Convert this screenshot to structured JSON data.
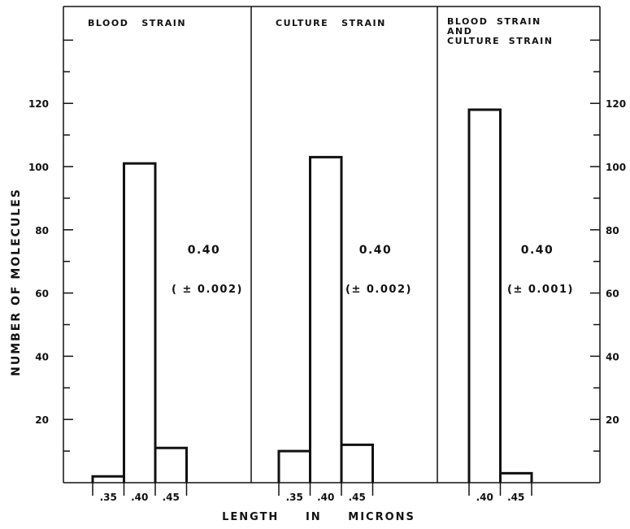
{
  "chart_data": [
    {
      "type": "bar",
      "title_lines": [
        "BLOOD   STRAIN"
      ],
      "categories": [
        ".35",
        ".40",
        ".45"
      ],
      "values": [
        2,
        101,
        11
      ],
      "annotation": "0.40",
      "annotation_sub": "( ± 0.002)"
    },
    {
      "type": "bar",
      "title_lines": [
        "CULTURE   STRAIN"
      ],
      "categories": [
        ".35",
        ".40",
        ".45"
      ],
      "values": [
        10,
        103,
        12
      ],
      "annotation": "0.40",
      "annotation_sub": "(± 0.002)"
    },
    {
      "type": "bar",
      "title_lines": [
        "BLOOD  STRAIN",
        "AND",
        "CULTURE  STRAIN"
      ],
      "categories": [
        ".40",
        ".45"
      ],
      "values": [
        118,
        3
      ],
      "annotation": "0.40",
      "annotation_sub": "(± 0.001)"
    }
  ],
  "axes": {
    "ylabel": "NUMBER   OF   MOLECULES",
    "xlabel": "LENGTH     IN     MICRONS",
    "yticks_left": [
      "120",
      "100",
      "80",
      "60",
      "40",
      "20"
    ],
    "yticks_right": [
      "120",
      "100",
      "80",
      "60",
      "40",
      "20"
    ],
    "ylim": [
      0,
      150
    ]
  }
}
